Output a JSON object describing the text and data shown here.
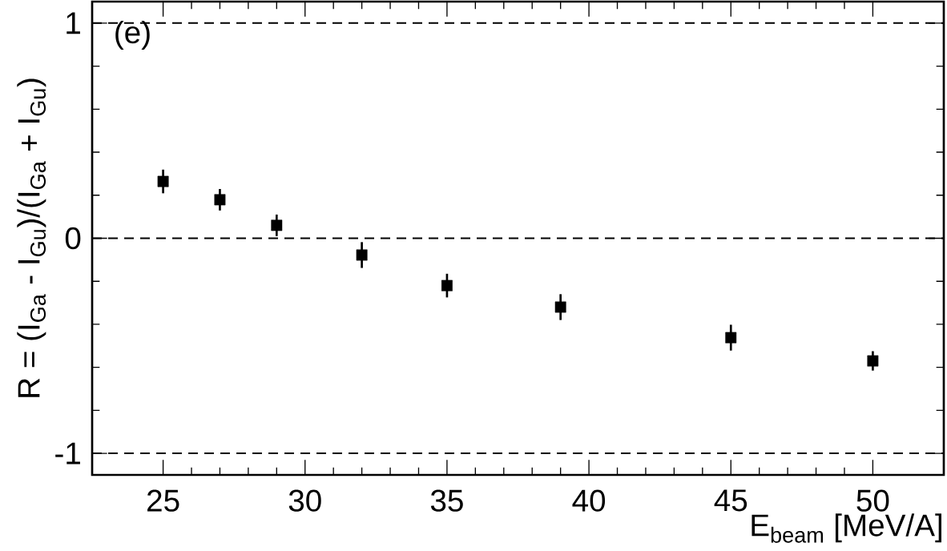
{
  "chart_data": {
    "type": "scatter",
    "xlabel": "E$_{beam}$ [MeV/A]",
    "ylabel": "R = (I$_{Ga}$ - I$_{Gu}$)/(I$_{Ga}$ + I$_{Gu}$)",
    "x": [
      25,
      27,
      29,
      32,
      35,
      39,
      45,
      50
    ],
    "series": [
      {
        "color": "#000000",
        "values": [
          0.264,
          0.179,
          0.06,
          -0.078,
          -0.22,
          -0.32,
          -0.462,
          -0.57
        ],
        "errors": [
          0.055,
          0.05,
          0.05,
          0.06,
          0.055,
          0.06,
          0.06,
          0.045
        ]
      }
    ],
    "xlim": [
      22.5,
      52.5
    ],
    "ylim": [
      -1.1,
      1.1
    ],
    "xticks": [
      25,
      30,
      35,
      40,
      45,
      50
    ],
    "yticks": [
      -1,
      0,
      1
    ],
    "marker": "square",
    "grid": false,
    "ref_lines": [
      {
        "axis": "y",
        "value": 1,
        "line_style": "dashed"
      },
      {
        "axis": "y",
        "value": 0,
        "line_style": "dashed"
      },
      {
        "axis": "y",
        "value": -1,
        "line_style": "dashed"
      }
    ],
    "annotations": [
      "(e)"
    ]
  }
}
